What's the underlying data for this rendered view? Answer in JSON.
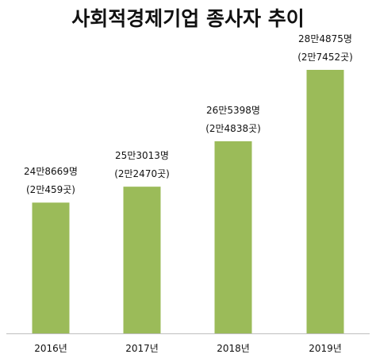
{
  "chart_data": {
    "type": "bar",
    "title": "사회적경제기업 종사자 추이",
    "categories": [
      "2016년",
      "2017년",
      "2018년",
      "2019년"
    ],
    "values": [
      248669,
      253013,
      265398,
      284875
    ],
    "value_labels": [
      "24만8669명",
      "25만3013명",
      "26만5398명",
      "28만4875명"
    ],
    "sub_labels": [
      "(2만459곳)",
      "(2만2470곳)",
      "(2만4838곳)",
      "(2만7452곳)"
    ],
    "grid": false,
    "legend": "none",
    "bar_color": "#9bbb59",
    "axis_color": "#bfbfbf"
  }
}
